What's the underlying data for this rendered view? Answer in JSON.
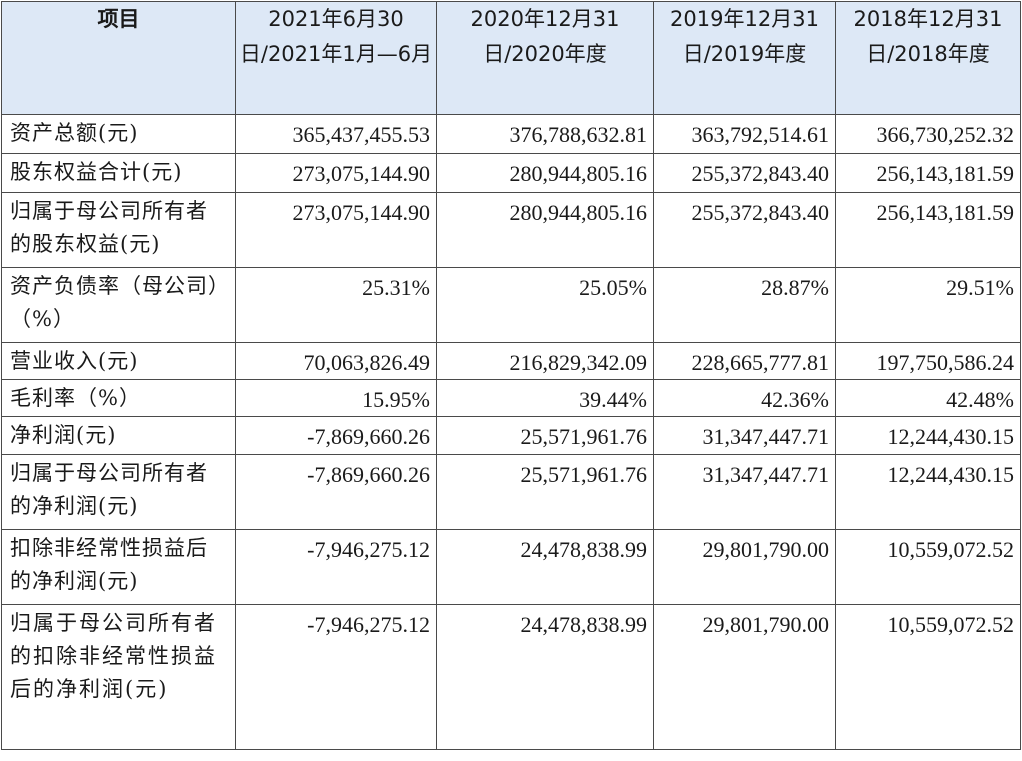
{
  "header": {
    "item": "项目",
    "col1": "2021年6月30日/2021年1月—6月",
    "col2": "2020年12月31日/2020年度",
    "col3": "2019年12月31日/2019年度",
    "col4": "2018年12月31日/2018年度"
  },
  "rows": [
    {
      "label": "资产总额(元)",
      "v1": "365,437,455.53",
      "v2": "376,788,632.81",
      "v3": "363,792,514.61",
      "v4": "366,730,252.32"
    },
    {
      "label": "股东权益合计(元)",
      "v1": "273,075,144.90",
      "v2": "280,944,805.16",
      "v3": "255,372,843.40",
      "v4": "256,143,181.59"
    },
    {
      "label": "归属于母公司所有者的股东权益(元)",
      "v1": "273,075,144.90",
      "v2": "280,944,805.16",
      "v3": "255,372,843.40",
      "v4": "256,143,181.59"
    },
    {
      "label": "资产负债率（母公司）（%）",
      "v1": "25.31%",
      "v2": "25.05%",
      "v3": "28.87%",
      "v4": "29.51%"
    },
    {
      "label": "营业收入(元)",
      "v1": "70,063,826.49",
      "v2": "216,829,342.09",
      "v3": "228,665,777.81",
      "v4": "197,750,586.24"
    },
    {
      "label": "毛利率（%）",
      "v1": "15.95%",
      "v2": "39.44%",
      "v3": "42.36%",
      "v4": "42.48%"
    },
    {
      "label": "净利润(元)",
      "v1": "-7,869,660.26",
      "v2": "25,571,961.76",
      "v3": "31,347,447.71",
      "v4": "12,244,430.15"
    },
    {
      "label": "归属于母公司所有者的净利润(元)",
      "v1": "-7,869,660.26",
      "v2": "25,571,961.76",
      "v3": "31,347,447.71",
      "v4": "12,244,430.15"
    },
    {
      "label": "扣除非经常性损益后的净利润(元)",
      "v1": "-7,946,275.12",
      "v2": "24,478,838.99",
      "v3": "29,801,790.00",
      "v4": "10,559,072.52"
    },
    {
      "label": "归属于母公司所有者的扣除非经常性损益后的净利润(元)",
      "v1": "-7,946,275.12",
      "v2": "24,478,838.99",
      "v3": "29,801,790.00",
      "v4": "10,559,072.52"
    }
  ]
}
